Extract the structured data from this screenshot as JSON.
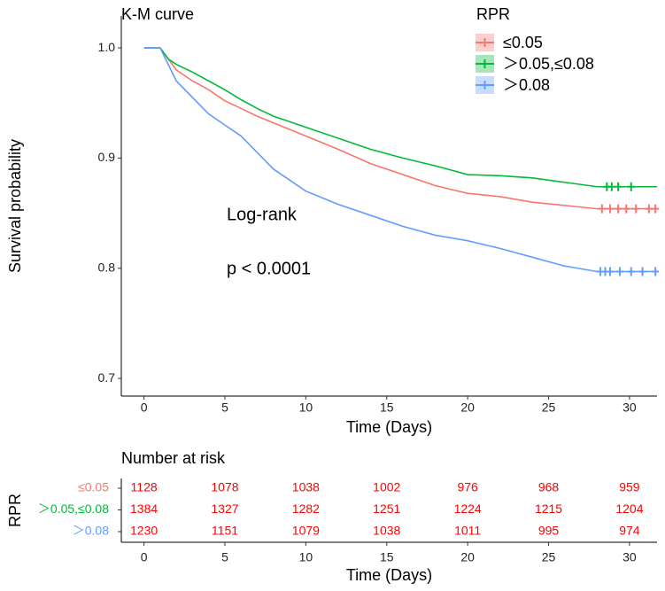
{
  "chart_data": [
    {
      "type": "line",
      "title": "K-M curve",
      "x_label": "Time (Days)",
      "y_label": "Survival probability",
      "legend_title": "RPR",
      "legend": "top-right",
      "annotations": [
        "Log-rank",
        "p < 0.0001"
      ],
      "xlim": [
        -1.4,
        31.7
      ],
      "ylim": [
        0.684,
        1.029
      ],
      "xticks": [
        0,
        5,
        10,
        15,
        20,
        25,
        30
      ],
      "yticks": [
        0.7,
        0.8,
        0.9,
        {
          "value": 1.0,
          "label": "1.0"
        }
      ],
      "x": [
        0,
        1,
        1.5,
        2,
        3,
        4,
        5,
        6,
        7,
        8,
        10,
        12,
        14,
        16,
        18,
        20,
        22,
        24,
        26,
        28,
        31.7
      ],
      "series": [
        {
          "name": "≤0.05",
          "color": "#F8766D",
          "values": [
            1,
            1,
            0.99,
            0.98,
            0.97,
            0.962,
            0.952,
            0.945,
            0.938,
            0.932,
            0.92,
            0.908,
            0.895,
            0.885,
            0.875,
            0.868,
            0.865,
            0.86,
            0.857,
            0.854,
            0.854
          ],
          "censor_x": [
            28.3,
            28.8,
            29.3,
            29.8,
            30.4,
            31.2,
            31.6
          ]
        },
        {
          "name": "＞0.05,≤0.08",
          "color": "#00BA38",
          "values": [
            1,
            1,
            0.99,
            0.985,
            0.978,
            0.97,
            0.962,
            0.953,
            0.945,
            0.938,
            0.928,
            0.918,
            0.908,
            0.9,
            0.893,
            0.885,
            0.884,
            0.882,
            0.878,
            0.874,
            0.874
          ],
          "censor_x": [
            28.6,
            28.9,
            29.3,
            30.1
          ]
        },
        {
          "name": "＞0.08",
          "color": "#619CFF",
          "values": [
            1,
            1,
            0.985,
            0.97,
            0.955,
            0.94,
            0.93,
            0.92,
            0.905,
            0.89,
            0.87,
            0.858,
            0.848,
            0.838,
            0.83,
            0.825,
            0.818,
            0.81,
            0.802,
            0.797,
            0.797
          ],
          "censor_x": [
            28.2,
            28.5,
            28.8,
            29.4,
            30.1,
            30.8,
            31.6
          ]
        }
      ]
    },
    {
      "type": "risk_table",
      "title": "Number at risk",
      "x_label": "Time (Days)",
      "y_label": "RPR",
      "xlim": [
        -1.4,
        31.7
      ],
      "xticks": [
        0,
        5,
        10,
        15,
        20,
        25,
        30
      ],
      "text_color": "#ff0000",
      "rows": [
        {
          "name": "≤0.05",
          "color": "#F8766D",
          "values": [
            1128,
            1078,
            1038,
            1002,
            976,
            968,
            959
          ]
        },
        {
          "name": "＞0.05,≤0.08",
          "color": "#00BA38",
          "values": [
            1384,
            1327,
            1282,
            1251,
            1224,
            1215,
            1204
          ]
        },
        {
          "name": "＞0.08",
          "color": "#619CFF",
          "values": [
            1230,
            1151,
            1079,
            1038,
            1011,
            995,
            974
          ]
        }
      ]
    }
  ]
}
